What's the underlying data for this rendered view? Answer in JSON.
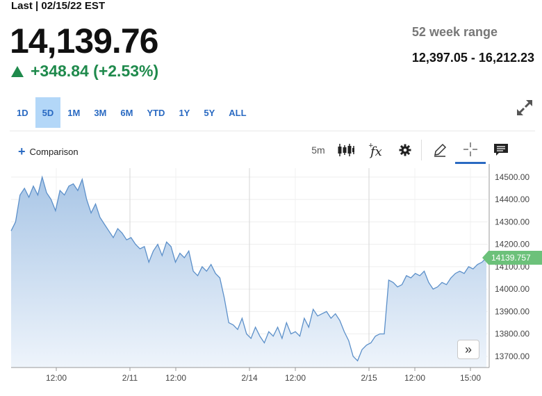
{
  "quote": {
    "last_label": "Last | 02/15/22 EST",
    "price": "14,139.76",
    "change": "+348.84 (+2.53%)",
    "range_label": "52 week range",
    "range_value": "12,397.05 - 16,212.23",
    "up_color": "#1f8a4c"
  },
  "periods": [
    "1D",
    "5D",
    "1M",
    "3M",
    "6M",
    "YTD",
    "1Y",
    "5Y",
    "ALL"
  ],
  "active_period": "5D",
  "toolbar": {
    "comparison_label": "Comparison",
    "interval_label": "5m",
    "icons": [
      "candlestick-icon",
      "fx-icon",
      "gear-icon",
      "pencil-icon",
      "crosshair-icon",
      "comment-icon"
    ]
  },
  "nav_button_label": "»",
  "chart_data": {
    "type": "area",
    "title": "",
    "xlabel": "",
    "ylabel": "",
    "ylim": [
      13650,
      14540
    ],
    "y_ticks": [
      "14500.00",
      "14400.00",
      "14300.00",
      "14200.00",
      "14100.00",
      "14000.00",
      "13900.00",
      "13800.00",
      "13700.00"
    ],
    "x_ticks": [
      "12:00",
      "2/11",
      "12:00",
      "2/14",
      "12:00",
      "2/15",
      "12:00",
      "15:00"
    ],
    "last_value_label": "14139.757",
    "line_color": "#5b8fc9",
    "fill_top": "#a9c6e6",
    "fill_bottom": "#eef4fb",
    "label_color": "#6cc17a",
    "series": [
      {
        "values": [
          14260,
          14300,
          14420,
          14450,
          14410,
          14460,
          14420,
          14500,
          14430,
          14400,
          14350,
          14440,
          14420,
          14460,
          14470,
          14440,
          14490,
          14400,
          14340,
          14380,
          14320,
          14290,
          14260,
          14230,
          14270,
          14250,
          14220,
          14230,
          14200,
          14180,
          14190,
          14120,
          14170,
          14200,
          14150,
          14210,
          14190,
          14120,
          14160,
          14140,
          14170,
          14080,
          14060,
          14100,
          14080,
          14110,
          14070,
          14050,
          13960,
          13850,
          13840,
          13820,
          13870,
          13800,
          13780,
          13830,
          13790,
          13760,
          13810,
          13790,
          13830,
          13780,
          13850,
          13800,
          13810,
          13790,
          13870,
          13830,
          13910,
          13880,
          13890,
          13900,
          13870,
          13890,
          13860,
          13810,
          13770,
          13700,
          13680,
          13730,
          13750,
          13760,
          13790,
          13800,
          13800,
          14040,
          14030,
          14010,
          14020,
          14060,
          14050,
          14070,
          14060,
          14080,
          14030,
          14000,
          14010,
          14030,
          14020,
          14050,
          14070,
          14080,
          14070,
          14100,
          14090,
          14110,
          14120,
          14140
        ]
      }
    ]
  }
}
